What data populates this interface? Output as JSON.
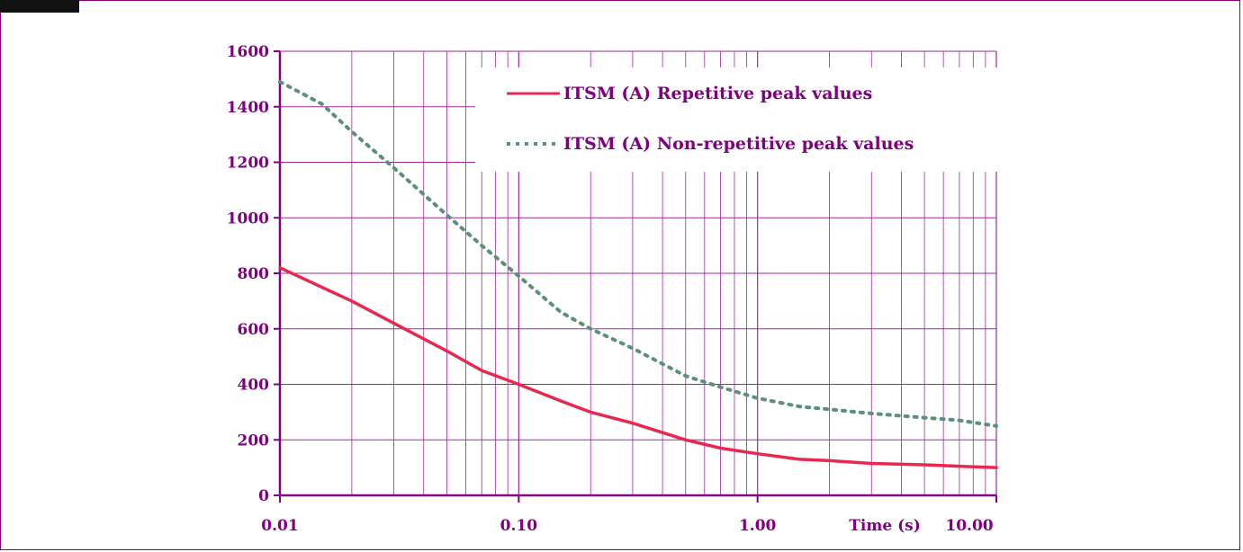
{
  "chart_data": {
    "type": "line",
    "x_scale": "log",
    "xlim": [
      0.01,
      10
    ],
    "ylim": [
      0,
      1600
    ],
    "grid": true,
    "legend_position": "top-right",
    "title": "",
    "xlabel": "Time (s)",
    "ylabel": "",
    "x_ticks": [
      {
        "value": 0.01,
        "label": "0.01"
      },
      {
        "value": 0.1,
        "label": "0.10"
      },
      {
        "value": 1,
        "label": "1.00"
      },
      {
        "value": 10,
        "label": "10.00"
      }
    ],
    "y_ticks": [
      {
        "value": 0,
        "label": "0"
      },
      {
        "value": 200,
        "label": "200"
      },
      {
        "value": 400,
        "label": "400"
      },
      {
        "value": 600,
        "label": "600"
      },
      {
        "value": 800,
        "label": "800"
      },
      {
        "value": 1000,
        "label": "1000"
      },
      {
        "value": 1200,
        "label": "1200"
      },
      {
        "value": 1400,
        "label": "1400"
      },
      {
        "value": 1600,
        "label": "1600"
      }
    ],
    "series": [
      {
        "name": "ITSM (A) Repetitive peak values",
        "color": "#e8294f",
        "style": "solid",
        "x": [
          0.01,
          0.02,
          0.03,
          0.05,
          0.07,
          0.1,
          0.15,
          0.2,
          0.3,
          0.5,
          0.7,
          1,
          1.5,
          2,
          3,
          5,
          7,
          10
        ],
        "y": [
          820,
          700,
          620,
          520,
          450,
          400,
          340,
          300,
          260,
          200,
          170,
          150,
          130,
          125,
          115,
          110,
          105,
          100
        ]
      },
      {
        "name": "ITSM (A) Non-repetitive peak values",
        "color": "#5c8f7c",
        "style": "dotted",
        "x": [
          0.01,
          0.015,
          0.02,
          0.03,
          0.05,
          0.07,
          0.1,
          0.15,
          0.2,
          0.3,
          0.5,
          0.7,
          1,
          1.5,
          2,
          3,
          5,
          7,
          10
        ],
        "y": [
          1490,
          1410,
          1310,
          1180,
          1010,
          900,
          790,
          660,
          600,
          530,
          430,
          390,
          350,
          320,
          310,
          295,
          280,
          270,
          250
        ]
      }
    ]
  }
}
